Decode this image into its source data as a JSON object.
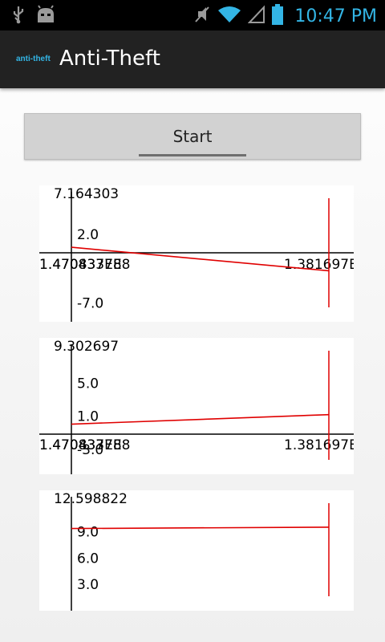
{
  "status_bar": {
    "time": "10:47 PM",
    "icons": [
      "usb-icon",
      "android-debug-icon",
      "mute-icon",
      "wifi-icon",
      "signal-icon",
      "battery-icon"
    ]
  },
  "action_bar": {
    "logo_text": "anti-theft",
    "title": "Anti-Theft"
  },
  "start_button": {
    "label": "Start"
  },
  "colors": {
    "accent": "#33b5e5",
    "series": "#e00000",
    "action_bar": "#222222",
    "button": "#d2d2d2"
  },
  "chart_data": [
    {
      "type": "line",
      "top_label": "7.164303",
      "y_ticks": [
        {
          "label": "2.0",
          "value": 2.0
        },
        {
          "label": "-7.0",
          "value": -7.0
        }
      ],
      "ylim": [
        -9.5,
        7.164303
      ],
      "x_tick_labels": [
        "1.470837E8",
        "1.4704337E8",
        "1.381697E"
      ],
      "series": [
        {
          "x": [
            0,
            1
          ],
          "y": [
            0.3,
            -2.8
          ]
        }
      ]
    },
    {
      "type": "line",
      "top_label": "9.302697",
      "y_ticks": [
        {
          "label": "5.0",
          "value": 5.0
        },
        {
          "label": "1.0",
          "value": 1.0
        },
        {
          "label": "-3.0",
          "value": -3.0
        }
      ],
      "ylim": [
        -6.0,
        9.302697
      ],
      "x_tick_labels": [
        "1.470837E8",
        "1.4704337E8",
        "1.381697E"
      ],
      "series": [
        {
          "x": [
            0,
            1
          ],
          "y": [
            0.05,
            1.2
          ]
        }
      ]
    },
    {
      "type": "line",
      "top_label": "12.598822",
      "y_ticks": [
        {
          "label": "9.0",
          "value": 9.0
        },
        {
          "label": "6.0",
          "value": 6.0
        },
        {
          "label": "3.0",
          "value": 3.0
        }
      ],
      "ylim": [
        0,
        12.598822
      ],
      "x_tick_labels": [],
      "series": [
        {
          "x": [
            0,
            1
          ],
          "y": [
            9.35,
            9.5
          ]
        }
      ]
    }
  ]
}
